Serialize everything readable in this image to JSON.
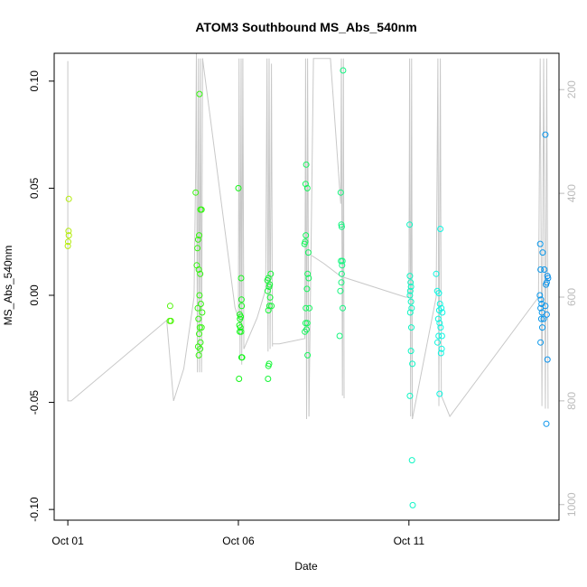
{
  "chart_data": {
    "type": "scatter",
    "title": "ATOM3 Southbound MS_Abs_540nm",
    "xlabel": "Date",
    "ylabel": "MS_Abs_540nm",
    "x_tick_labels": [
      "Oct 01",
      "Oct 06",
      "Oct 11"
    ],
    "x_tick_values": [
      1,
      6,
      11
    ],
    "xlim": [
      0.6,
      15.4
    ],
    "ylim": [
      -0.105,
      0.113
    ],
    "y_ticks": [
      -0.1,
      -0.05,
      0.0,
      0.05,
      0.1
    ],
    "y_tick_labels": [
      "-0.10",
      "-0.05",
      "0.00",
      "0.05",
      "0.10"
    ],
    "y2_ticks": [
      200,
      400,
      600,
      800,
      1000
    ],
    "y2_tick_labels": [
      "200",
      "400",
      "600",
      "800",
      "1000"
    ],
    "y2lim": [
      1030,
      130
    ],
    "y2_reversed": true,
    "grid": false,
    "colors": {
      "points": "color varies with date (yellow-green → green → cyan → blue)",
      "altitude_line": "#c8c8c8"
    },
    "series": [
      {
        "points": [
          {
            "x": 1.03,
            "y": 0.045
          },
          {
            "x": 1.02,
            "y": 0.03
          },
          {
            "x": 1.03,
            "y": 0.028
          },
          {
            "x": 1.01,
            "y": 0.025
          },
          {
            "x": 1.0,
            "y": 0.023
          },
          {
            "x": 4.0,
            "y": -0.005
          },
          {
            "x": 3.99,
            "y": -0.012
          },
          {
            "x": 4.02,
            "y": -0.012
          },
          {
            "x": 4.75,
            "y": 0.048
          },
          {
            "x": 4.86,
            "y": 0.094
          },
          {
            "x": 4.89,
            "y": 0.04
          },
          {
            "x": 4.92,
            "y": 0.04
          },
          {
            "x": 4.82,
            "y": 0.026
          },
          {
            "x": 4.85,
            "y": 0.028
          },
          {
            "x": 4.8,
            "y": 0.022
          },
          {
            "x": 4.78,
            "y": 0.014
          },
          {
            "x": 4.84,
            "y": 0.012
          },
          {
            "x": 4.88,
            "y": 0.01
          },
          {
            "x": 4.86,
            "y": 0.0
          },
          {
            "x": 4.9,
            "y": -0.004
          },
          {
            "x": 4.81,
            "y": -0.006
          },
          {
            "x": 4.94,
            "y": -0.008
          },
          {
            "x": 4.83,
            "y": -0.011
          },
          {
            "x": 4.87,
            "y": -0.015
          },
          {
            "x": 4.92,
            "y": -0.015
          },
          {
            "x": 4.85,
            "y": -0.018
          },
          {
            "x": 4.89,
            "y": -0.022
          },
          {
            "x": 4.82,
            "y": -0.024
          },
          {
            "x": 4.88,
            "y": -0.025
          },
          {
            "x": 4.84,
            "y": -0.028
          },
          {
            "x": 6.0,
            "y": 0.05
          },
          {
            "x": 6.08,
            "y": 0.008
          },
          {
            "x": 6.09,
            "y": -0.002
          },
          {
            "x": 6.1,
            "y": -0.005
          },
          {
            "x": 6.04,
            "y": -0.009
          },
          {
            "x": 6.07,
            "y": -0.01
          },
          {
            "x": 6.05,
            "y": -0.011
          },
          {
            "x": 6.03,
            "y": -0.014
          },
          {
            "x": 6.06,
            "y": -0.015
          },
          {
            "x": 6.08,
            "y": -0.017
          },
          {
            "x": 6.04,
            "y": -0.017
          },
          {
            "x": 6.11,
            "y": -0.029
          },
          {
            "x": 6.09,
            "y": -0.029
          },
          {
            "x": 6.02,
            "y": -0.039
          },
          {
            "x": 6.88,
            "y": 0.008
          },
          {
            "x": 6.95,
            "y": 0.01
          },
          {
            "x": 6.85,
            "y": 0.007
          },
          {
            "x": 6.92,
            "y": 0.005
          },
          {
            "x": 6.9,
            "y": 0.004
          },
          {
            "x": 6.86,
            "y": 0.002
          },
          {
            "x": 6.93,
            "y": -0.001
          },
          {
            "x": 6.97,
            "y": -0.005
          },
          {
            "x": 6.88,
            "y": -0.007
          },
          {
            "x": 6.91,
            "y": -0.005
          },
          {
            "x": 6.9,
            "y": -0.032
          },
          {
            "x": 6.88,
            "y": -0.033
          },
          {
            "x": 6.87,
            "y": -0.039
          },
          {
            "x": 7.99,
            "y": 0.061
          },
          {
            "x": 7.97,
            "y": 0.052
          },
          {
            "x": 8.02,
            "y": 0.05
          },
          {
            "x": 7.98,
            "y": 0.028
          },
          {
            "x": 7.96,
            "y": 0.025
          },
          {
            "x": 7.94,
            "y": 0.024
          },
          {
            "x": 8.05,
            "y": 0.02
          },
          {
            "x": 8.03,
            "y": 0.01
          },
          {
            "x": 8.06,
            "y": 0.008
          },
          {
            "x": 8.01,
            "y": 0.003
          },
          {
            "x": 7.98,
            "y": -0.006
          },
          {
            "x": 8.08,
            "y": -0.006
          },
          {
            "x": 7.97,
            "y": -0.013
          },
          {
            "x": 8.02,
            "y": -0.013
          },
          {
            "x": 8.0,
            "y": -0.016
          },
          {
            "x": 7.95,
            "y": -0.017
          },
          {
            "x": 8.03,
            "y": -0.028
          },
          {
            "x": 9.07,
            "y": 0.105
          },
          {
            "x": 9.0,
            "y": 0.048
          },
          {
            "x": 9.02,
            "y": 0.033
          },
          {
            "x": 9.03,
            "y": 0.032
          },
          {
            "x": 9.05,
            "y": 0.016
          },
          {
            "x": 9.01,
            "y": 0.016
          },
          {
            "x": 9.04,
            "y": 0.014
          },
          {
            "x": 9.03,
            "y": 0.01
          },
          {
            "x": 9.02,
            "y": 0.006
          },
          {
            "x": 8.99,
            "y": 0.002
          },
          {
            "x": 9.06,
            "y": -0.006
          },
          {
            "x": 8.97,
            "y": -0.019
          },
          {
            "x": 11.02,
            "y": 0.033
          },
          {
            "x": 11.03,
            "y": 0.009
          },
          {
            "x": 11.05,
            "y": 0.006
          },
          {
            "x": 11.06,
            "y": 0.004
          },
          {
            "x": 11.04,
            "y": 0.002
          },
          {
            "x": 11.03,
            "y": 0.0
          },
          {
            "x": 11.06,
            "y": -0.003
          },
          {
            "x": 11.08,
            "y": -0.006
          },
          {
            "x": 11.04,
            "y": -0.008
          },
          {
            "x": 11.07,
            "y": -0.015
          },
          {
            "x": 11.06,
            "y": -0.026
          },
          {
            "x": 11.1,
            "y": -0.032
          },
          {
            "x": 11.03,
            "y": -0.047
          },
          {
            "x": 11.09,
            "y": -0.077
          },
          {
            "x": 11.11,
            "y": -0.098
          },
          {
            "x": 11.8,
            "y": 0.01
          },
          {
            "x": 11.92,
            "y": 0.031
          },
          {
            "x": 11.83,
            "y": 0.002
          },
          {
            "x": 11.88,
            "y": 0.001
          },
          {
            "x": 11.91,
            "y": -0.004
          },
          {
            "x": 11.95,
            "y": -0.006
          },
          {
            "x": 11.89,
            "y": -0.007
          },
          {
            "x": 11.98,
            "y": -0.008
          },
          {
            "x": 11.86,
            "y": -0.011
          },
          {
            "x": 11.9,
            "y": -0.013
          },
          {
            "x": 11.93,
            "y": -0.015
          },
          {
            "x": 11.87,
            "y": -0.019
          },
          {
            "x": 11.97,
            "y": -0.019
          },
          {
            "x": 11.84,
            "y": -0.022
          },
          {
            "x": 11.96,
            "y": -0.025
          },
          {
            "x": 11.94,
            "y": -0.027
          },
          {
            "x": 11.9,
            "y": -0.046
          },
          {
            "x": 14.85,
            "y": 0.024
          },
          {
            "x": 14.92,
            "y": 0.02
          },
          {
            "x": 15.0,
            "y": 0.075
          },
          {
            "x": 14.86,
            "y": 0.012
          },
          {
            "x": 14.97,
            "y": 0.012
          },
          {
            "x": 15.06,
            "y": 0.009
          },
          {
            "x": 15.08,
            "y": 0.008
          },
          {
            "x": 15.04,
            "y": 0.006
          },
          {
            "x": 15.02,
            "y": 0.005
          },
          {
            "x": 14.84,
            "y": 0.0
          },
          {
            "x": 14.87,
            "y": -0.002
          },
          {
            "x": 14.89,
            "y": -0.004
          },
          {
            "x": 15.0,
            "y": -0.005
          },
          {
            "x": 14.86,
            "y": -0.006
          },
          {
            "x": 14.9,
            "y": -0.008
          },
          {
            "x": 15.04,
            "y": -0.009
          },
          {
            "x": 14.88,
            "y": -0.011
          },
          {
            "x": 14.95,
            "y": -0.011
          },
          {
            "x": 14.91,
            "y": -0.015
          },
          {
            "x": 14.86,
            "y": -0.022
          },
          {
            "x": 15.06,
            "y": -0.03
          },
          {
            "x": 15.03,
            "y": -0.06
          }
        ]
      }
    ],
    "altitude_segments": [
      [
        [
          1.0,
          145
        ],
        [
          1.0,
          800
        ],
        [
          1.1,
          800
        ],
        [
          3.9,
          645
        ],
        [
          3.9,
          645
        ],
        [
          4.1,
          800
        ],
        [
          4.4,
          738
        ],
        [
          4.7,
          600
        ],
        [
          4.75,
          350
        ],
        [
          4.77,
          120
        ],
        [
          4.8,
          745
        ],
        [
          4.83,
          140
        ],
        [
          4.86,
          745
        ],
        [
          4.89,
          140
        ],
        [
          4.92,
          745
        ],
        [
          4.95,
          140
        ]
      ],
      [
        [
          4.95,
          140
        ],
        [
          5.9,
          620
        ],
        [
          6.0,
          640
        ],
        [
          6.02,
          140
        ],
        [
          6.05,
          720
        ],
        [
          6.08,
          140
        ],
        [
          6.1,
          730
        ],
        [
          6.13,
          140
        ],
        [
          6.16,
          700
        ]
      ],
      [
        [
          6.16,
          700
        ],
        [
          6.55,
          640
        ],
        [
          6.8,
          585
        ],
        [
          6.84,
          140
        ],
        [
          6.87,
          705
        ],
        [
          6.9,
          140
        ],
        [
          6.93,
          700
        ],
        [
          6.97,
          150
        ],
        [
          7.0,
          695
        ]
      ],
      [
        [
          7.0,
          690
        ],
        [
          7.2,
          690
        ],
        [
          7.95,
          680
        ],
        [
          7.97,
          140
        ],
        [
          8.0,
          835
        ],
        [
          8.03,
          140
        ],
        [
          8.07,
          830
        ]
      ],
      [
        [
          8.07,
          830
        ],
        [
          8.2,
          140
        ],
        [
          8.5,
          140
        ],
        [
          8.7,
          140
        ],
        [
          9.0,
          420
        ],
        [
          9.02,
          140
        ],
        [
          9.05,
          790
        ],
        [
          9.08,
          140
        ],
        [
          9.1,
          795
        ]
      ],
      [
        [
          8.15,
          520
        ],
        [
          8.5,
          535
        ],
        [
          9.0,
          560
        ],
        [
          10.9,
          600
        ],
        [
          11.0,
          600
        ],
        [
          11.02,
          140
        ],
        [
          11.05,
          830
        ],
        [
          11.08,
          140
        ],
        [
          11.1,
          835
        ]
      ],
      [
        [
          11.1,
          835
        ],
        [
          11.8,
          600
        ],
        [
          11.85,
          140
        ],
        [
          11.88,
          810
        ],
        [
          11.92,
          140
        ],
        [
          11.95,
          790
        ]
      ],
      [
        [
          11.95,
          790
        ],
        [
          12.2,
          830
        ],
        [
          14.8,
          600
        ],
        [
          14.85,
          140
        ],
        [
          14.9,
          810
        ],
        [
          14.95,
          140
        ],
        [
          15.0,
          815
        ],
        [
          15.04,
          140
        ],
        [
          15.08,
          815
        ]
      ]
    ]
  }
}
